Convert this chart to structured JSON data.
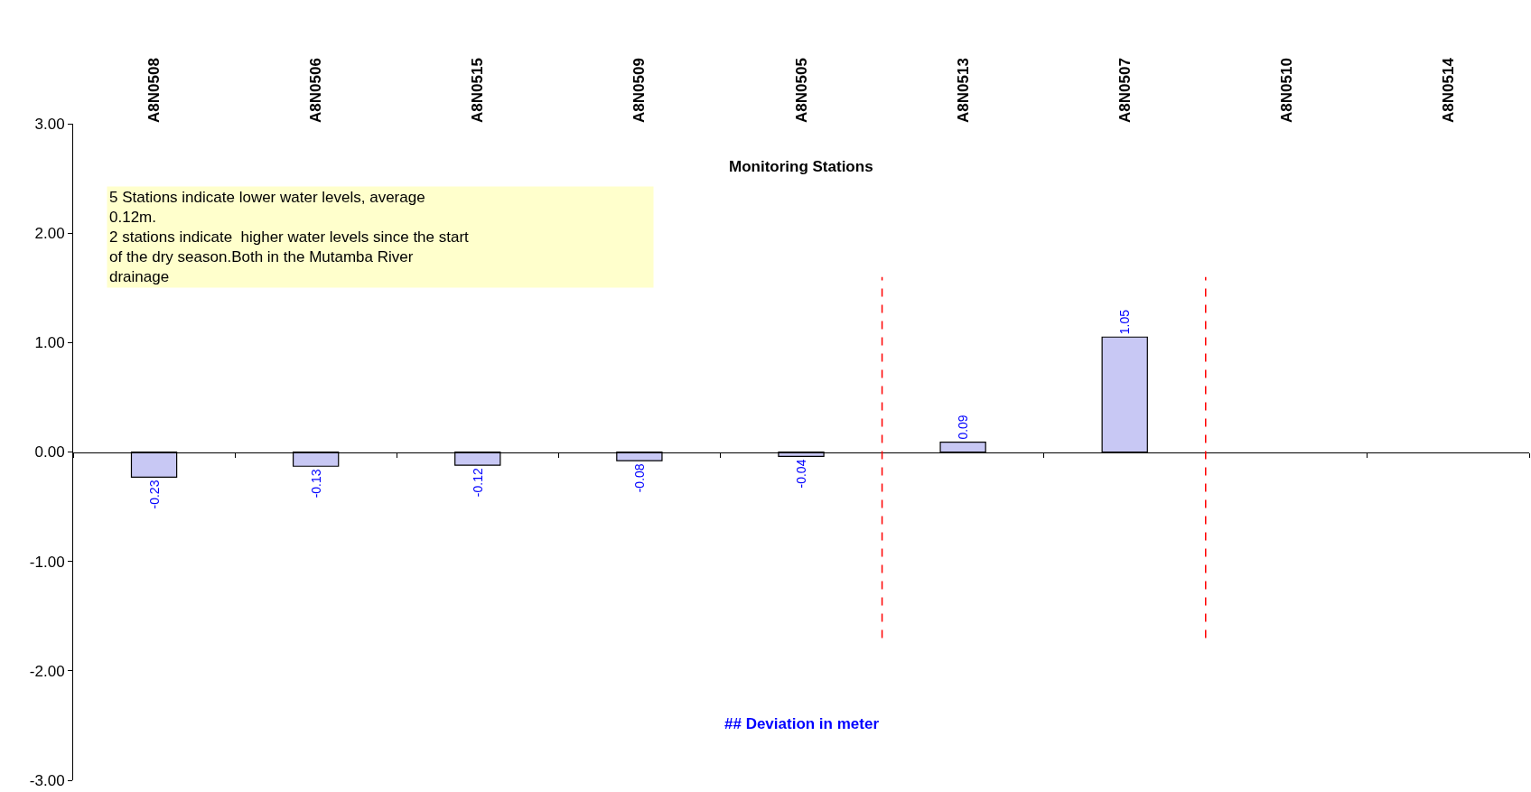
{
  "chart_data": {
    "type": "bar",
    "title": "Monitoring Stations",
    "categories": [
      "A8N0508",
      "A8N0506",
      "A8N0515",
      "A8N0509",
      "A8N0505",
      "A8N0513",
      "A8N0507",
      "A8N0510",
      "A8N0514"
    ],
    "series": [
      {
        "color": "#c8c8f4",
        "values": [
          -0.23,
          -0.13,
          -0.12,
          -0.08,
          -0.04,
          0.09,
          1.05,
          null,
          null
        ]
      }
    ],
    "data_labels": true,
    "ylim": [
      -3,
      3
    ],
    "yticks": [
      {
        "value": -3,
        "label": "-3.00"
      },
      {
        "value": -2,
        "label": "-2.00"
      },
      {
        "value": -1,
        "label": "-1.00"
      },
      {
        "value": 0,
        "label": "0.00"
      },
      {
        "value": 1,
        "label": "1.00"
      },
      {
        "value": 2,
        "label": "2.00"
      },
      {
        "value": 3,
        "label": "3.00"
      }
    ],
    "annotations": [
      "5 Stations indicate lower water levels, average\n0.12m.\n2 stations indicate  higher water levels since the start\nof the dry season.Both in the Mutamba River\ndrainage",
      "## Deviation in meter"
    ]
  }
}
